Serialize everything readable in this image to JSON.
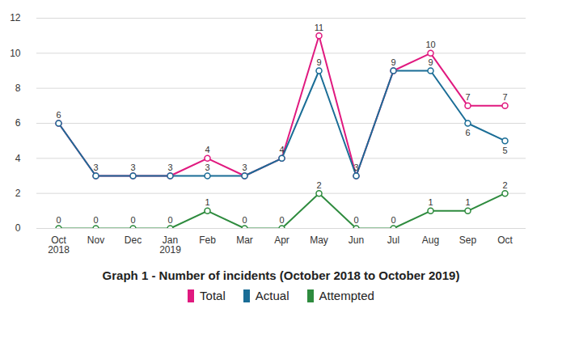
{
  "chart_data": {
    "type": "line",
    "title": "Graph 1 - Number of incidents (October 2018 to October 2019)",
    "categories": [
      "Oct\n2018",
      "Nov",
      "Dec",
      "Jan\n2019",
      "Feb",
      "Mar",
      "Apr",
      "May",
      "Jun",
      "Jul",
      "Aug",
      "Sep",
      "Oct"
    ],
    "series": [
      {
        "name": "Total",
        "color": "#e0197f",
        "marker": "circle",
        "data_labels": true,
        "values": [
          6,
          3,
          3,
          3,
          4,
          3,
          4,
          11,
          3,
          9,
          10,
          7,
          7
        ]
      },
      {
        "name": "Actual",
        "color": "#1a6d96",
        "marker": "circle",
        "data_labels": true,
        "values": [
          6,
          3,
          3,
          3,
          3,
          3,
          4,
          9,
          3,
          9,
          9,
          6,
          5
        ],
        "value_labels": [
          null,
          null,
          null,
          null,
          "3",
          null,
          null,
          "9",
          null,
          null,
          "9",
          "6",
          "5"
        ]
      },
      {
        "name": "Attempted",
        "color": "#2e8b3e",
        "marker": "circle",
        "data_labels": true,
        "values": [
          0,
          0,
          0,
          0,
          1,
          0,
          0,
          2,
          0,
          0,
          1,
          1,
          2
        ]
      }
    ],
    "ylim": [
      0,
      12
    ],
    "yticks": [
      0,
      2,
      4,
      6,
      8,
      10,
      12
    ],
    "grid": true,
    "legend": "bottom"
  }
}
